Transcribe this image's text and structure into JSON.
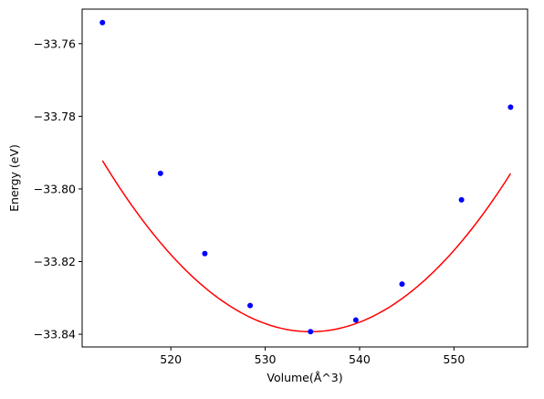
{
  "chart_data": {
    "type": "scatter",
    "title": "",
    "xlabel": "Volume(Å^3)",
    "ylabel": "Energy (eV)",
    "xlim": [
      510.6,
      557.8
    ],
    "ylim": [
      -33.8435,
      -33.7505
    ],
    "xticks": [
      520,
      530,
      540,
      550
    ],
    "xtick_labels": [
      "520",
      "530",
      "540",
      "550"
    ],
    "yticks": [
      -33.84,
      -33.82,
      -33.8,
      -33.78,
      -33.76
    ],
    "ytick_labels": [
      "−33.84",
      "−33.82",
      "−33.80",
      "−33.78",
      "−33.76"
    ],
    "grid": false,
    "legend": "none",
    "series": [
      {
        "kind": "points",
        "color": "#0000ff",
        "marker": "circle",
        "x": [
          512.75,
          518.9,
          523.6,
          528.4,
          534.8,
          539.6,
          544.5,
          550.8,
          556.0
        ],
        "y": [
          -33.7542,
          -33.7957,
          -33.8178,
          -33.8321,
          -33.8393,
          -33.8361,
          -33.8262,
          -33.803,
          -33.7775
        ]
      },
      {
        "kind": "fit-curve",
        "color": "#ff0000",
        "fit": "quadratic",
        "coefficients": [
          9.69e-05,
          534.8,
          -33.8393
        ],
        "x_range": [
          512.75,
          556.0
        ]
      }
    ]
  }
}
